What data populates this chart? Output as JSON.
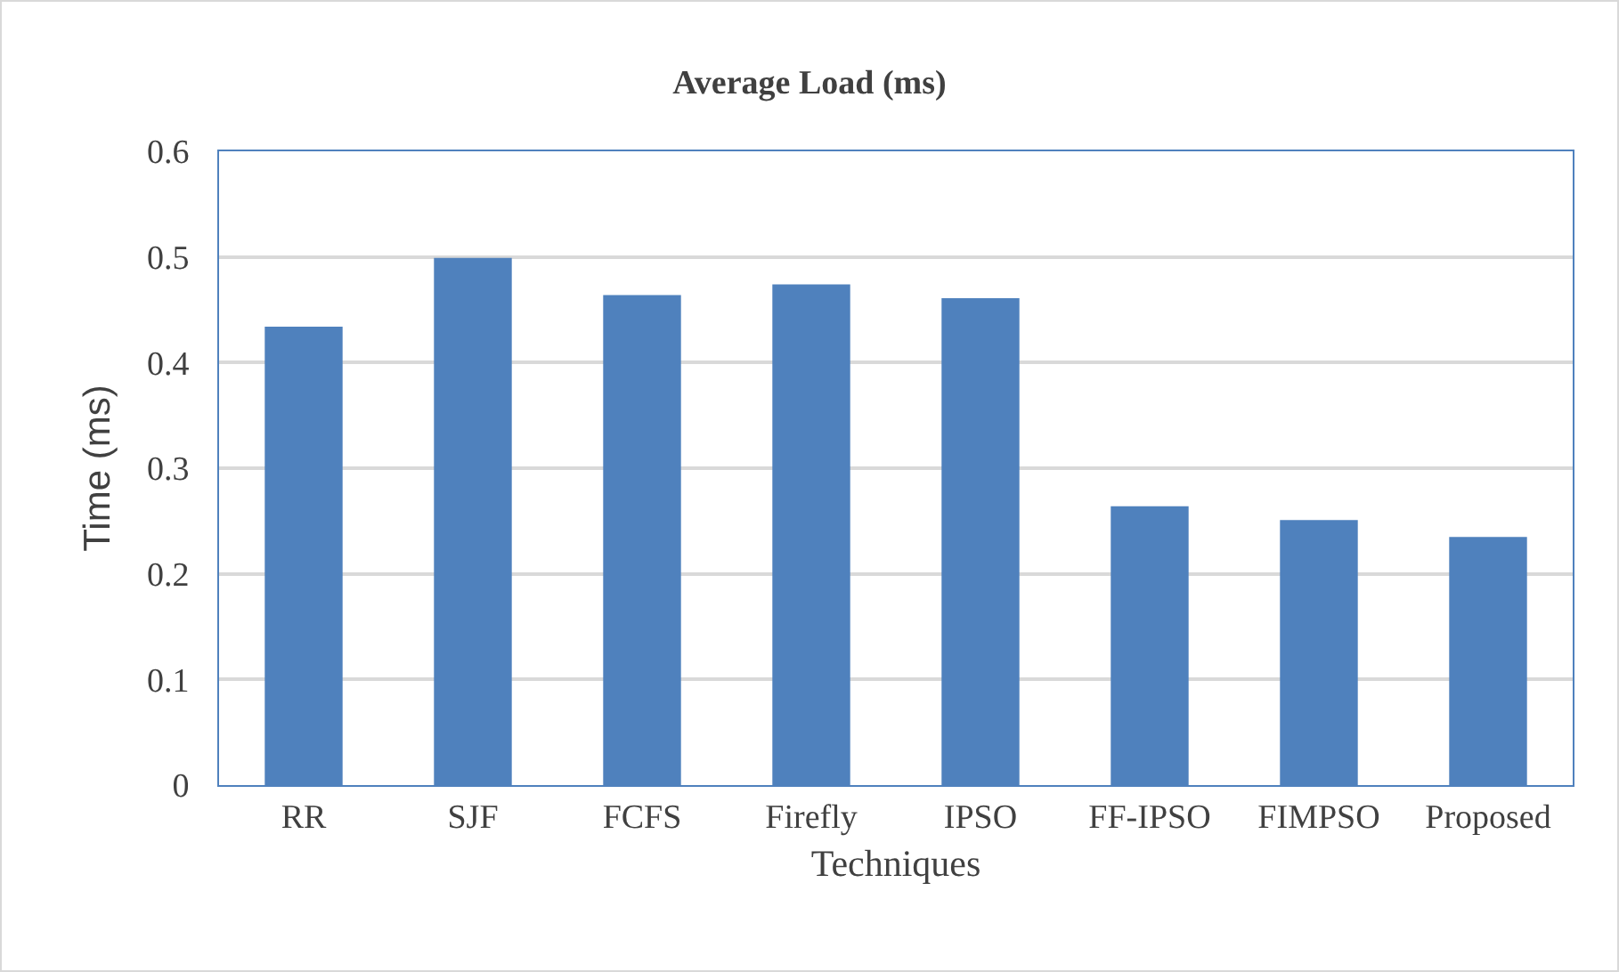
{
  "chart_data": {
    "type": "bar",
    "title": "Average Load (ms)",
    "xlabel": "Techniques",
    "ylabel": "Time (ms)",
    "categories": [
      "RR",
      "SJF",
      "FCFS",
      "Firefly",
      "IPSO",
      "FF-IPSO",
      "FIMPSO",
      "Proposed"
    ],
    "values": [
      0.434,
      0.499,
      0.464,
      0.474,
      0.461,
      0.264,
      0.251,
      0.235
    ],
    "color": "#4f81bd",
    "ylim": [
      0,
      0.6
    ],
    "yticks": [
      0,
      0.1,
      0.2,
      0.3,
      0.4,
      0.5,
      0.6
    ],
    "grid": "y"
  }
}
